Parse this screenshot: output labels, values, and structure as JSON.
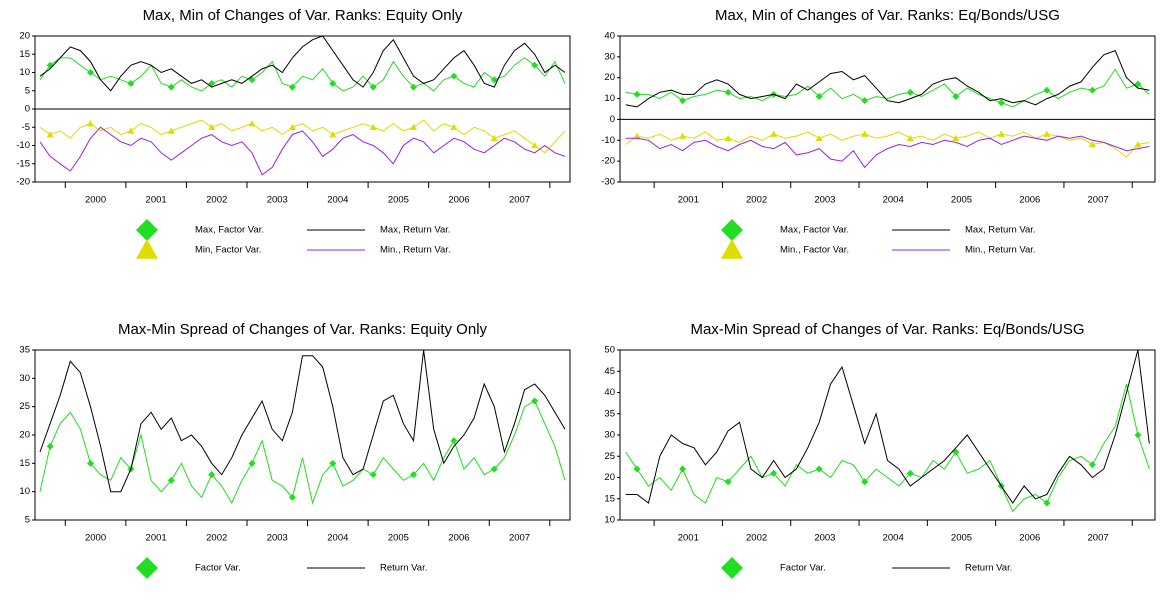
{
  "chart_data": [
    {
      "type": "line",
      "title": "Max, Min of Changes of Var. Ranks: Equity Only",
      "zero_line": true,
      "ylim": [
        -20,
        20
      ],
      "yticks": [
        -20,
        -15,
        -10,
        -5,
        0,
        5,
        10,
        15,
        20
      ],
      "categories": [
        null,
        null,
        null,
        null,
        null,
        null,
        "2000",
        null,
        null,
        null,
        null,
        null,
        "2001",
        null,
        null,
        null,
        null,
        null,
        "2002",
        null,
        null,
        null,
        null,
        null,
        "2003",
        null,
        null,
        null,
        null,
        null,
        "2004",
        null,
        null,
        null,
        null,
        null,
        "2005",
        null,
        null,
        null,
        null,
        null,
        "2006",
        null,
        null,
        null,
        null,
        null,
        "2007",
        null,
        null,
        null,
        null
      ],
      "series": [
        {
          "name": "Max, Factor Var.",
          "color": "#22dd22",
          "marker": "diamond",
          "values": [
            8,
            12,
            14,
            14,
            12,
            10,
            8,
            9,
            8,
            7,
            9,
            12,
            7,
            6,
            8,
            6,
            5,
            7,
            8,
            6,
            9,
            8,
            10,
            13,
            7,
            6,
            9,
            8,
            11,
            7,
            5,
            6,
            9,
            6,
            8,
            13,
            9,
            6,
            7,
            5,
            8,
            9,
            7,
            6,
            10,
            8,
            9,
            12,
            14,
            12,
            9,
            13,
            7
          ]
        },
        {
          "name": "Max, Return Var.",
          "color": "#000000",
          "marker": null,
          "values": [
            9,
            11,
            14,
            17,
            16,
            13,
            8,
            5,
            9,
            12,
            13,
            12,
            10,
            11,
            9,
            7,
            8,
            6,
            7,
            8,
            7,
            9,
            11,
            12,
            10,
            14,
            17,
            19,
            20,
            16,
            12,
            8,
            6,
            10,
            16,
            19,
            14,
            9,
            7,
            8,
            11,
            14,
            16,
            12,
            7,
            6,
            12,
            16,
            18,
            15,
            10,
            12,
            10
          ]
        },
        {
          "name": "Min, Factor Var.",
          "color": "#dddd00",
          "marker": "triangle",
          "values": [
            -5,
            -7,
            -6,
            -8,
            -5,
            -4,
            -6,
            -5,
            -7,
            -6,
            -4,
            -5,
            -7,
            -6,
            -5,
            -4,
            -3,
            -5,
            -4,
            -6,
            -5,
            -4,
            -6,
            -5,
            -7,
            -5,
            -4,
            -6,
            -5,
            -7,
            -6,
            -5,
            -4,
            -5,
            -6,
            -4,
            -6,
            -5,
            -3,
            -6,
            -4,
            -5,
            -7,
            -5,
            -6,
            -8,
            -7,
            -6,
            -8,
            -10,
            -12,
            -9,
            -6
          ]
        },
        {
          "name": "Min., Return Var.",
          "color": "#9922ee",
          "marker": null,
          "values": [
            -9,
            -13,
            -15,
            -17,
            -13,
            -8,
            -5,
            -7,
            -9,
            -10,
            -8,
            -9,
            -12,
            -14,
            -12,
            -10,
            -8,
            -7,
            -9,
            -10,
            -9,
            -12,
            -18,
            -16,
            -11,
            -7,
            -6,
            -9,
            -13,
            -11,
            -8,
            -7,
            -9,
            -10,
            -12,
            -15,
            -10,
            -8,
            -9,
            -12,
            -10,
            -8,
            -9,
            -11,
            -12,
            -10,
            -8,
            -9,
            -11,
            -12,
            -10,
            -12,
            -13
          ]
        }
      ]
    },
    {
      "type": "line",
      "title": "Max, Min of Changes of Var. Ranks: Eq/Bonds/USG",
      "zero_line": true,
      "ylim": [
        -30,
        40
      ],
      "yticks": [
        -30,
        -20,
        -10,
        0,
        10,
        20,
        30,
        40
      ],
      "categories": [
        null,
        null,
        null,
        null,
        null,
        null,
        "2001",
        null,
        null,
        null,
        null,
        null,
        "2002",
        null,
        null,
        null,
        null,
        null,
        "2003",
        null,
        null,
        null,
        null,
        null,
        "2004",
        null,
        null,
        null,
        null,
        null,
        "2005",
        null,
        null,
        null,
        null,
        null,
        "2006",
        null,
        null,
        null,
        null,
        null,
        "2007",
        null,
        null,
        null,
        null
      ],
      "series": [
        {
          "name": "Max, Factor Var.",
          "color": "#22dd22",
          "marker": "diamond",
          "values": [
            13,
            12,
            12,
            10,
            13,
            9,
            11,
            12,
            14,
            13,
            10,
            11,
            9,
            12,
            11,
            12,
            16,
            11,
            15,
            10,
            12,
            9,
            11,
            10,
            12,
            13,
            11,
            14,
            17,
            11,
            15,
            12,
            10,
            8,
            6,
            9,
            12,
            14,
            10,
            13,
            15,
            14,
            16,
            24,
            15,
            17,
            12
          ]
        },
        {
          "name": "Max, Return Var.",
          "color": "#000000",
          "marker": null,
          "values": [
            7,
            6,
            10,
            13,
            14,
            12,
            12,
            17,
            19,
            17,
            12,
            10,
            11,
            12,
            10,
            17,
            14,
            18,
            22,
            23,
            19,
            21,
            15,
            9,
            8,
            10,
            12,
            17,
            19,
            20,
            16,
            13,
            9,
            10,
            8,
            9,
            7,
            10,
            12,
            16,
            18,
            25,
            31,
            33,
            20,
            15,
            14
          ]
        },
        {
          "name": "Min., Factor Var.",
          "color": "#dddd00",
          "marker": "triangle",
          "values": [
            -12,
            -8,
            -9,
            -7,
            -10,
            -8,
            -9,
            -6,
            -10,
            -9,
            -11,
            -8,
            -10,
            -7,
            -9,
            -8,
            -6,
            -9,
            -7,
            -10,
            -8,
            -7,
            -9,
            -8,
            -6,
            -9,
            -8,
            -10,
            -7,
            -9,
            -8,
            -6,
            -9,
            -7,
            -8,
            -6,
            -9,
            -7,
            -8,
            -10,
            -9,
            -12,
            -11,
            -14,
            -18,
            -12,
            -11
          ]
        },
        {
          "name": "Min., Return Var.",
          "color": "#9922ee",
          "marker": null,
          "values": [
            -9,
            -9,
            -10,
            -14,
            -12,
            -15,
            -11,
            -10,
            -13,
            -15,
            -12,
            -10,
            -13,
            -14,
            -11,
            -17,
            -16,
            -14,
            -19,
            -20,
            -15,
            -23,
            -17,
            -14,
            -12,
            -13,
            -11,
            -12,
            -10,
            -11,
            -13,
            -10,
            -9,
            -12,
            -10,
            -8,
            -9,
            -10,
            -8,
            -9,
            -8,
            -10,
            -11,
            -13,
            -15,
            -14,
            -13
          ]
        }
      ]
    },
    {
      "type": "line",
      "title": "Max-Min Spread of Changes of Var. Ranks: Equity Only",
      "zero_line": false,
      "ylim": [
        5,
        35
      ],
      "yticks": [
        5,
        10,
        15,
        20,
        25,
        30,
        35
      ],
      "categories": [
        null,
        null,
        null,
        null,
        null,
        null,
        "2000",
        null,
        null,
        null,
        null,
        null,
        "2001",
        null,
        null,
        null,
        null,
        null,
        "2002",
        null,
        null,
        null,
        null,
        null,
        "2003",
        null,
        null,
        null,
        null,
        null,
        "2004",
        null,
        null,
        null,
        null,
        null,
        "2005",
        null,
        null,
        null,
        null,
        null,
        "2006",
        null,
        null,
        null,
        null,
        null,
        "2007",
        null,
        null,
        null,
        null
      ],
      "series": [
        {
          "name": "Factor Var.",
          "color": "#22dd22",
          "marker": "diamond",
          "values": [
            10,
            18,
            22,
            24,
            21,
            15,
            13,
            12,
            16,
            14,
            20,
            12,
            10,
            12,
            15,
            11,
            9,
            13,
            11,
            8,
            12,
            15,
            19,
            12,
            11,
            9,
            16,
            8,
            13,
            15,
            11,
            12,
            14,
            13,
            16,
            14,
            12,
            13,
            15,
            12,
            16,
            19,
            14,
            16,
            13,
            14,
            16,
            20,
            25,
            26,
            22,
            18,
            12
          ]
        },
        {
          "name": "Return Var.",
          "color": "#000000",
          "marker": null,
          "values": [
            17,
            22,
            27,
            33,
            31,
            25,
            18,
            10,
            10,
            14,
            22,
            24,
            21,
            23,
            19,
            20,
            18,
            15,
            13,
            16,
            20,
            23,
            26,
            21,
            19,
            24,
            34,
            34,
            32,
            25,
            16,
            13,
            14,
            20,
            26,
            27,
            22,
            19,
            35,
            21,
            15,
            18,
            20,
            23,
            29,
            25,
            17,
            22,
            28,
            29,
            27,
            24,
            21
          ]
        }
      ]
    },
    {
      "type": "line",
      "title": "Max-Min Spread of Changes of Var. Ranks: Eq/Bonds/USG",
      "zero_line": false,
      "ylim": [
        10,
        50
      ],
      "yticks": [
        10,
        15,
        20,
        25,
        30,
        35,
        40,
        45,
        50
      ],
      "categories": [
        null,
        null,
        null,
        null,
        null,
        null,
        "2001",
        null,
        null,
        null,
        null,
        null,
        "2002",
        null,
        null,
        null,
        null,
        null,
        "2003",
        null,
        null,
        null,
        null,
        null,
        "2004",
        null,
        null,
        null,
        null,
        null,
        "2005",
        null,
        null,
        null,
        null,
        null,
        "2006",
        null,
        null,
        null,
        null,
        null,
        "2007",
        null,
        null,
        null,
        null
      ],
      "series": [
        {
          "name": "Factor Var.",
          "color": "#22dd22",
          "marker": "diamond",
          "values": [
            26,
            22,
            18,
            20,
            17,
            22,
            16,
            14,
            20,
            19,
            22,
            25,
            20,
            21,
            18,
            23,
            21,
            22,
            20,
            24,
            23,
            19,
            22,
            20,
            18,
            21,
            20,
            24,
            22,
            26,
            21,
            22,
            24,
            18,
            12,
            15,
            16,
            14,
            20,
            24,
            25,
            23,
            28,
            32,
            42,
            30,
            22
          ]
        },
        {
          "name": "Return Var.",
          "color": "#000000",
          "marker": null,
          "values": [
            16,
            16,
            14,
            25,
            30,
            28,
            27,
            23,
            26,
            31,
            33,
            22,
            20,
            24,
            20,
            22,
            27,
            33,
            42,
            46,
            37,
            28,
            35,
            24,
            22,
            18,
            20,
            22,
            24,
            27,
            30,
            26,
            22,
            18,
            14,
            18,
            15,
            16,
            21,
            25,
            23,
            20,
            22,
            30,
            40,
            50,
            28
          ]
        }
      ]
    }
  ]
}
